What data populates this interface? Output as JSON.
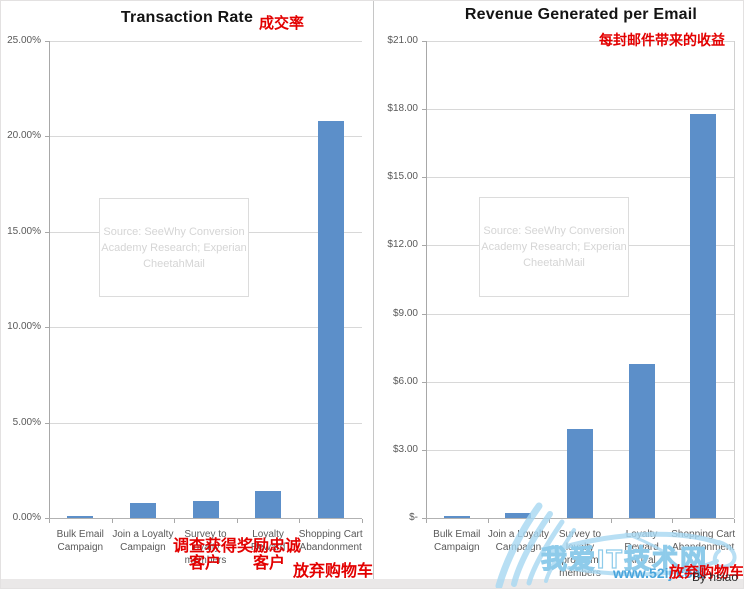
{
  "page": {
    "byline": "By hsiao"
  },
  "watermark": {
    "site_name": "我爱IT技术网",
    "site_url": "www.52ij.com"
  },
  "chart_data": [
    {
      "type": "bar",
      "title": "Transaction Rate",
      "title_annotation_cn": "成交率",
      "categories": [
        "Bulk Email Campaign",
        "Join a Loyalty Campaign",
        "Survey to loyalty members",
        "Loyalty Reward",
        "Shopping Cart Abandonment"
      ],
      "category_label_lines": [
        [
          "Bulk Email",
          "Campaign"
        ],
        [
          "Join a Loyalty",
          "Campaign"
        ],
        [
          "Survey to",
          "loyalty",
          "members"
        ],
        [
          "Loyalty",
          "Reward"
        ],
        [
          "Shopping Cart",
          "Abandonment"
        ]
      ],
      "values": [
        0.1,
        0.8,
        0.9,
        1.4,
        20.8
      ],
      "value_unit": "%",
      "ylim": [
        0,
        25
      ],
      "yticks": [
        {
          "value": 0,
          "label": "0.00%"
        },
        {
          "value": 5,
          "label": "5.00%"
        },
        {
          "value": 10,
          "label": "10.00%"
        },
        {
          "value": 15,
          "label": "15.00%"
        },
        {
          "value": 20,
          "label": "20.00%"
        },
        {
          "value": 25,
          "label": "25.00%"
        }
      ],
      "grid": true,
      "legend": false,
      "bar_color": "#5c8fc9",
      "source_note": "Source: SeeWhy Conversion\nAcademy Research; Experian\nCheetahMail",
      "annotations_cn": [
        {
          "text": "调查获得\n客户",
          "applies_to": "Survey to loyalty members"
        },
        {
          "text": "奖励忠诚\n客户",
          "applies_to": "Loyalty Reward"
        },
        {
          "text": "放弃购物车",
          "applies_to": "Shopping Cart Abandonment"
        }
      ]
    },
    {
      "type": "bar",
      "title": "Revenue Generated per Email",
      "title_annotation_cn": "每封邮件带来的收益",
      "categories": [
        "Bulk Email Campaign",
        "Join a Loyalty Campaign",
        "Survey to loyalty program members",
        "Loyalty Reward Arrival",
        "Shopping Cart Abandonment"
      ],
      "category_label_lines": [
        [
          "Bulk Email",
          "Campaign"
        ],
        [
          "Join a Loyalty",
          "Campaign"
        ],
        [
          "Survey to",
          "loyalty",
          "program",
          "members"
        ],
        [
          "Loyalty",
          "Reward",
          "Arrival"
        ],
        [
          "Shopping Cart",
          "Abandonment"
        ]
      ],
      "values": [
        0.1,
        0.2,
        3.9,
        6.8,
        17.8
      ],
      "value_unit": "$",
      "ylim": [
        0,
        21
      ],
      "yticks": [
        {
          "value": 0,
          "label": "$-"
        },
        {
          "value": 3,
          "label": "$3.00"
        },
        {
          "value": 6,
          "label": "$6.00"
        },
        {
          "value": 9,
          "label": "$9.00"
        },
        {
          "value": 12,
          "label": "$12.00"
        },
        {
          "value": 15,
          "label": "$15.00"
        },
        {
          "value": 18,
          "label": "$18.00"
        },
        {
          "value": 21,
          "label": "$21.00"
        }
      ],
      "grid": true,
      "legend": false,
      "bar_color": "#5c8fc9",
      "source_note": "Source: SeeWhy Conversion\nAcademy Research; Experian\nCheetahMail",
      "annotations_cn": [
        {
          "text": "放弃购物车",
          "applies_to": "Shopping Cart Abandonment"
        }
      ]
    }
  ]
}
